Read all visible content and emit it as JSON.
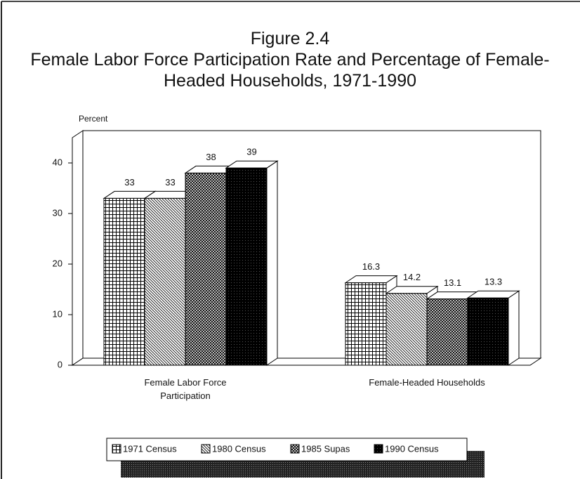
{
  "chart_data": {
    "type": "bar3d",
    "title": "Figure 2.4",
    "subtitle": "Female Labor Force Participation Rate and Percentage of Female-Headed Households, 1971-1990",
    "ylabel": "Percent",
    "categories": [
      "Female Labor Force Participation",
      "Female-Headed Households"
    ],
    "series": [
      {
        "name": "1971 Census",
        "pattern": "grid",
        "values": [
          33,
          16.3
        ]
      },
      {
        "name": "1980 Census",
        "pattern": "hatch",
        "values": [
          33,
          14.2
        ]
      },
      {
        "name": "1985 Supas",
        "pattern": "crosshatch",
        "values": [
          38,
          13.1
        ]
      },
      {
        "name": "1990 Census",
        "pattern": "solid",
        "values": [
          39,
          13.3
        ]
      }
    ],
    "ylim": [
      0,
      45
    ],
    "yticks": [
      0,
      10,
      20,
      30,
      40
    ]
  }
}
